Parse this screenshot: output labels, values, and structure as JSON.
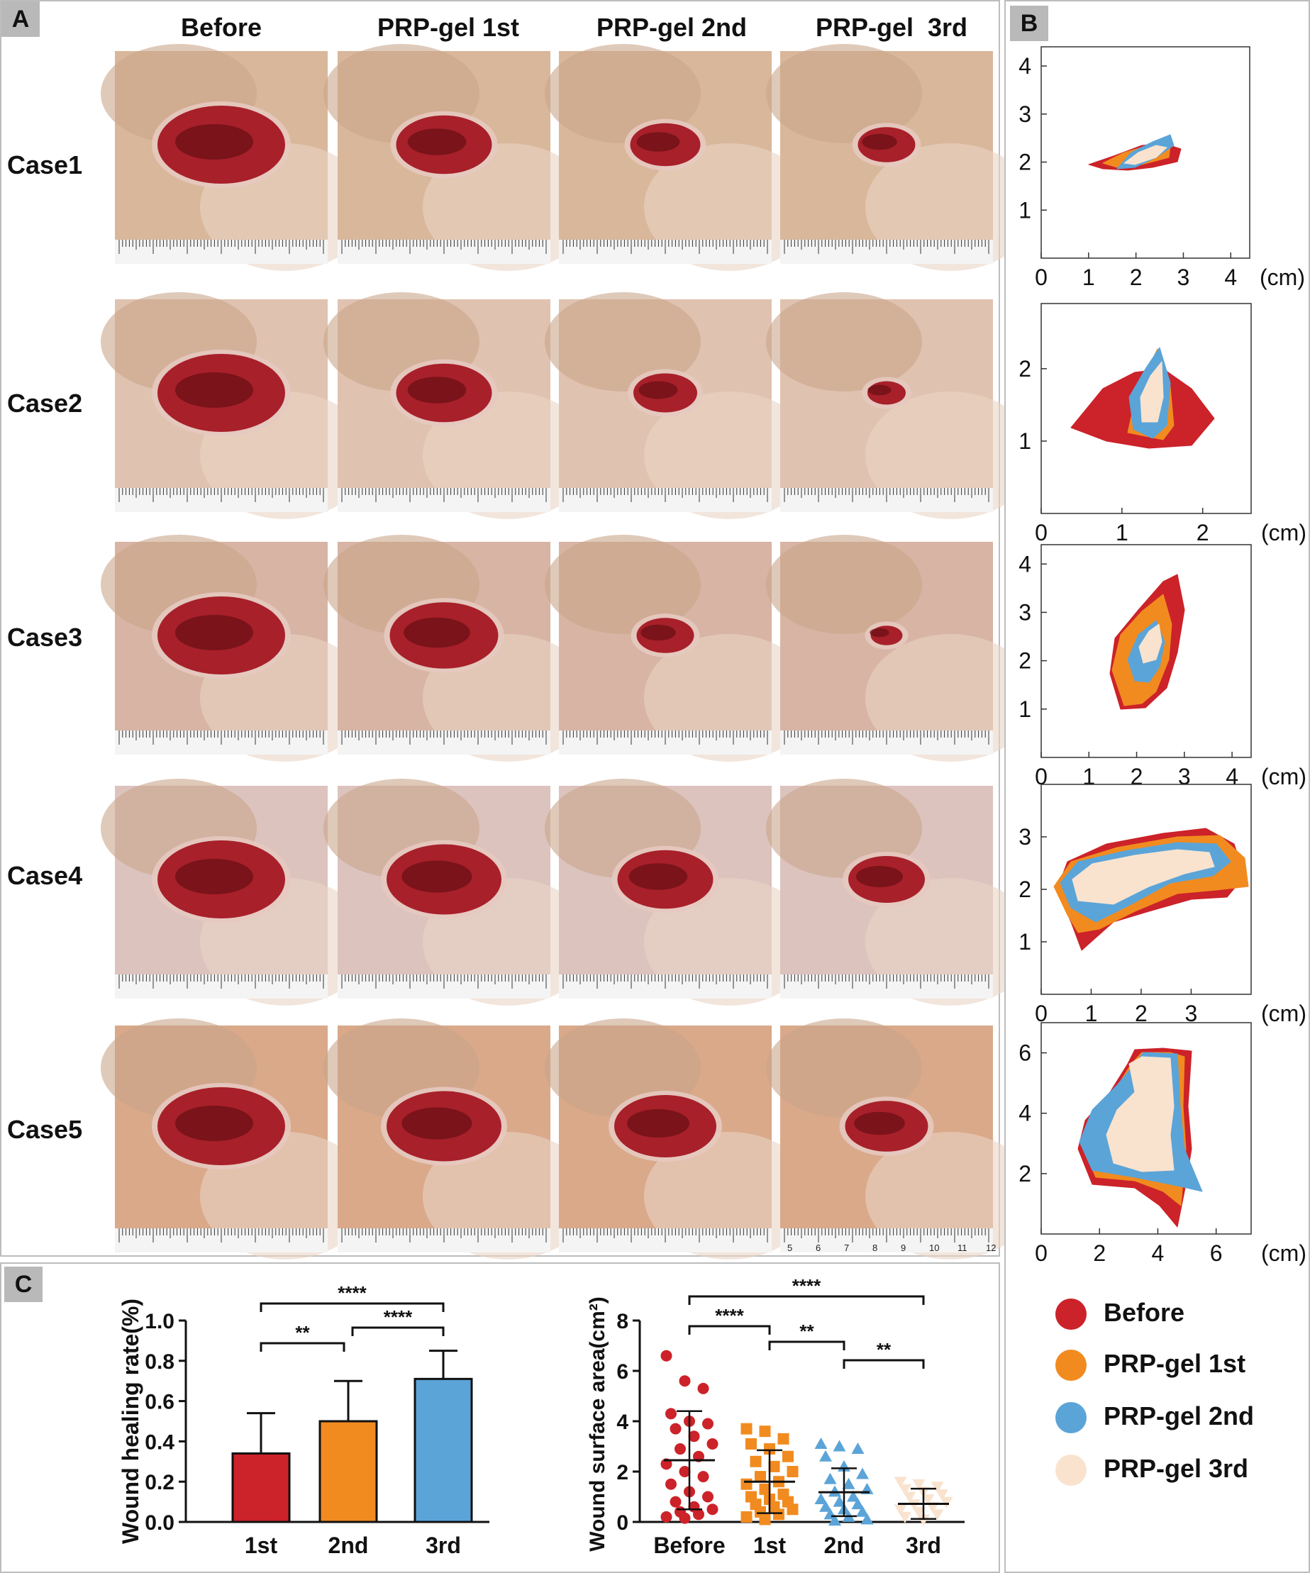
{
  "panel_labels": {
    "a": "A",
    "b": "B",
    "c": "C"
  },
  "panel_a": {
    "columns": [
      "Before",
      "PRP-gel 1st",
      "PRP-gel 2nd",
      "PRP-gel  3rd"
    ],
    "rows": [
      "Case1",
      "Case2",
      "Case3",
      "Case4",
      "Case5"
    ],
    "ruler_numbers": [
      "5",
      "6",
      "7",
      "8",
      "9",
      "10",
      "11",
      "12"
    ]
  },
  "colors": {
    "before": "#cc2229",
    "first": "#f18b1f",
    "second": "#5ba4d8",
    "third": "#f9e3cf"
  },
  "panel_b": {
    "unit": "(cm)",
    "maps": [
      {
        "x_ticks": [
          "0",
          "1",
          "2",
          "3",
          "4"
        ],
        "y_ticks": [
          "1",
          "2",
          "3",
          "4"
        ]
      },
      {
        "x_ticks": [
          "0",
          "1",
          "2"
        ],
        "y_ticks": [
          "1",
          "2"
        ]
      },
      {
        "x_ticks": [
          "0",
          "1",
          "2",
          "3",
          "4"
        ],
        "y_ticks": [
          "1",
          "2",
          "3",
          "4"
        ]
      },
      {
        "x_ticks": [
          "0",
          "1",
          "2",
          "3"
        ],
        "y_ticks": [
          "1",
          "2",
          "3"
        ]
      },
      {
        "x_ticks": [
          "0",
          "2",
          "4",
          "6"
        ],
        "y_ticks": [
          "2",
          "4",
          "6"
        ]
      }
    ],
    "legend": [
      "Before",
      "PRP-gel 1st",
      "PRP-gel 2nd",
      "PRP-gel 3rd"
    ]
  },
  "chart_data": [
    {
      "type": "bar",
      "ylabel": "Wound healing rate(%)",
      "categories": [
        "1st",
        "2nd",
        "3rd"
      ],
      "values": [
        0.34,
        0.5,
        0.71
      ],
      "error_upper": [
        0.54,
        0.7,
        0.85
      ],
      "ylim": [
        0,
        1.0
      ],
      "yticks": [
        "0.0",
        "0.2",
        "0.4",
        "0.6",
        "0.8",
        "1.0"
      ],
      "colors": [
        "#cc2229",
        "#f18b1f",
        "#5ba4d8"
      ],
      "significance": [
        {
          "from": "1st",
          "to": "2nd",
          "label": "**"
        },
        {
          "from": "2nd",
          "to": "3rd",
          "label": "****"
        },
        {
          "from": "1st",
          "to": "3rd",
          "label": "****"
        }
      ]
    },
    {
      "type": "scatter",
      "ylabel": "Wound surface area(cm²)",
      "categories": [
        "Before",
        "1st",
        "2nd",
        "3rd"
      ],
      "ylim": [
        0,
        8
      ],
      "yticks": [
        "0",
        "2",
        "4",
        "6",
        "8"
      ],
      "colors": [
        "#cc2229",
        "#f18b1f",
        "#5ba4d8",
        "#f9e3cf"
      ],
      "markers": [
        "circle",
        "square",
        "triangle",
        "triangle-down"
      ],
      "means": [
        2.45,
        1.6,
        1.18,
        0.72
      ],
      "sd": [
        1.95,
        1.25,
        0.95,
        0.6
      ],
      "series": [
        {
          "values": [
            6.6,
            5.6,
            5.3,
            4.3,
            4.0,
            3.9,
            3.7,
            3.4,
            3.1,
            2.9,
            2.6,
            2.3,
            2.0,
            1.8,
            1.5,
            1.2,
            1.0,
            0.8,
            0.6,
            0.5,
            0.4,
            0.3,
            0.2,
            0.15
          ]
        },
        {
          "values": [
            3.7,
            3.6,
            3.3,
            3.1,
            2.9,
            2.6,
            2.4,
            2.2,
            2.0,
            1.8,
            1.6,
            1.5,
            1.3,
            1.1,
            1.0,
            0.9,
            0.8,
            0.7,
            0.6,
            0.5,
            0.4,
            0.3,
            0.2,
            0.1
          ]
        },
        {
          "values": [
            3.1,
            3.0,
            2.9,
            2.6,
            2.2,
            1.9,
            1.7,
            1.5,
            1.3,
            1.2,
            1.0,
            0.9,
            0.8,
            0.7,
            0.6,
            0.5,
            0.4,
            0.3,
            0.2,
            0.1,
            0.05
          ]
        },
        {
          "values": [
            1.6,
            1.5,
            1.4,
            1.3,
            1.2,
            1.1,
            1.0,
            0.9,
            0.8,
            0.7,
            0.6,
            0.5,
            0.4,
            0.3,
            0.2,
            0.1
          ]
        }
      ],
      "significance": [
        {
          "from": "Before",
          "to": "1st",
          "label": "****"
        },
        {
          "from": "1st",
          "to": "2nd",
          "label": "**"
        },
        {
          "from": "2nd",
          "to": "3rd",
          "label": "**"
        },
        {
          "from": "Before",
          "to": "3rd",
          "label": "****"
        }
      ]
    }
  ]
}
